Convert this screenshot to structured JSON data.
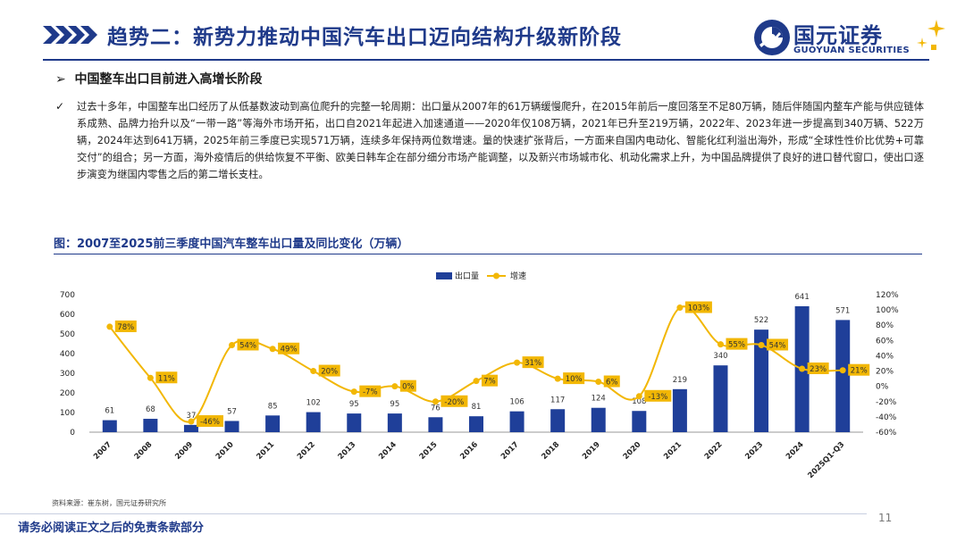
{
  "header": {
    "title": "趋势二：新势力推动中国汽车出口迈向结构升级新阶段",
    "logo_cn": "国元证券",
    "logo_en": "GUOYUAN SECURITIES",
    "brand_color": "#1f3a8a",
    "accent_color": "#f2b705"
  },
  "section": {
    "marker": "➢",
    "heading": "中国整车出口目前进入高增长阶段",
    "check": "✓",
    "body": "过去十多年，中国整车出口经历了从低基数波动到高位爬升的完整一轮周期：出口量从2007年的61万辆缓慢爬升，在2015年前后一度回落至不足80万辆，随后伴随国内整车产能与供应链体系成熟、品牌力抬升以及“一带一路”等海外市场开拓，出口自2021年起进入加速通道——2020年仅108万辆，2021年已升至219万辆，2022年、2023年进一步提高到340万辆、522万辆，2024年达到641万辆，2025年前三季度已实现571万辆，连续多年保持两位数增速。量的快速扩张背后，一方面来自国内电动化、智能化红利溢出海外，形成“全球性性价比优势+可靠交付”的组合；另一方面，海外疫情后的供给恢复不平衡、欧美日韩车企在部分细分市场产能调整，以及新兴市场城市化、机动化需求上升，为中国品牌提供了良好的进口替代窗口，使出口逐步演变为继国内零售之后的第二增长支柱。"
  },
  "chart_title": "图：2007至2025前三季度中国汽车整车出口量及同比变化（万辆）",
  "chart_data": {
    "type": "bar+line",
    "categories": [
      "2007",
      "2008",
      "2009",
      "2010",
      "2011",
      "2012",
      "2013",
      "2014",
      "2015",
      "2016",
      "2017",
      "2018",
      "2019",
      "2020",
      "2021",
      "2022",
      "2023",
      "2024",
      "2025Q1-Q3"
    ],
    "series": [
      {
        "name": "出口量",
        "type": "bar",
        "axis": "left",
        "color": "#1f3f99",
        "values": [
          61,
          68,
          37,
          57,
          85,
          102,
          95,
          95,
          76,
          81,
          106,
          117,
          124,
          108,
          219,
          340,
          522,
          641,
          571
        ]
      },
      {
        "name": "增速",
        "type": "line",
        "axis": "right",
        "color": "#f2b705",
        "values": [
          78,
          11,
          -46,
          54,
          49,
          20,
          -7,
          0,
          -20,
          7,
          31,
          10,
          6,
          -13,
          103,
          55,
          54,
          23,
          21
        ],
        "labels": [
          "78%",
          "11%",
          "-46%",
          "54%",
          "49%",
          "20%",
          "-7%",
          "0%",
          "-20%",
          "7%",
          "31%",
          "10%",
          "6%",
          "-13%",
          "103%",
          "55%",
          "54%",
          "23%",
          "21%"
        ]
      }
    ],
    "y_left": {
      "min": 0,
      "max": 700,
      "ticks": [
        0,
        100,
        200,
        300,
        400,
        500,
        600,
        700
      ]
    },
    "y_right": {
      "min": -60,
      "max": 120,
      "ticks": [
        "-60%",
        "-40%",
        "-20%",
        "0%",
        "20%",
        "40%",
        "60%",
        "80%",
        "100%",
        "120%"
      ]
    },
    "legend": {
      "position": "top-center",
      "items": [
        "出口量",
        "增速"
      ]
    },
    "grid": false
  },
  "footer": {
    "source": "资料来源：崔东树，国元证券研究所",
    "page_number": "11",
    "disclaimer": "请务必阅读正文之后的免责条款部分"
  }
}
